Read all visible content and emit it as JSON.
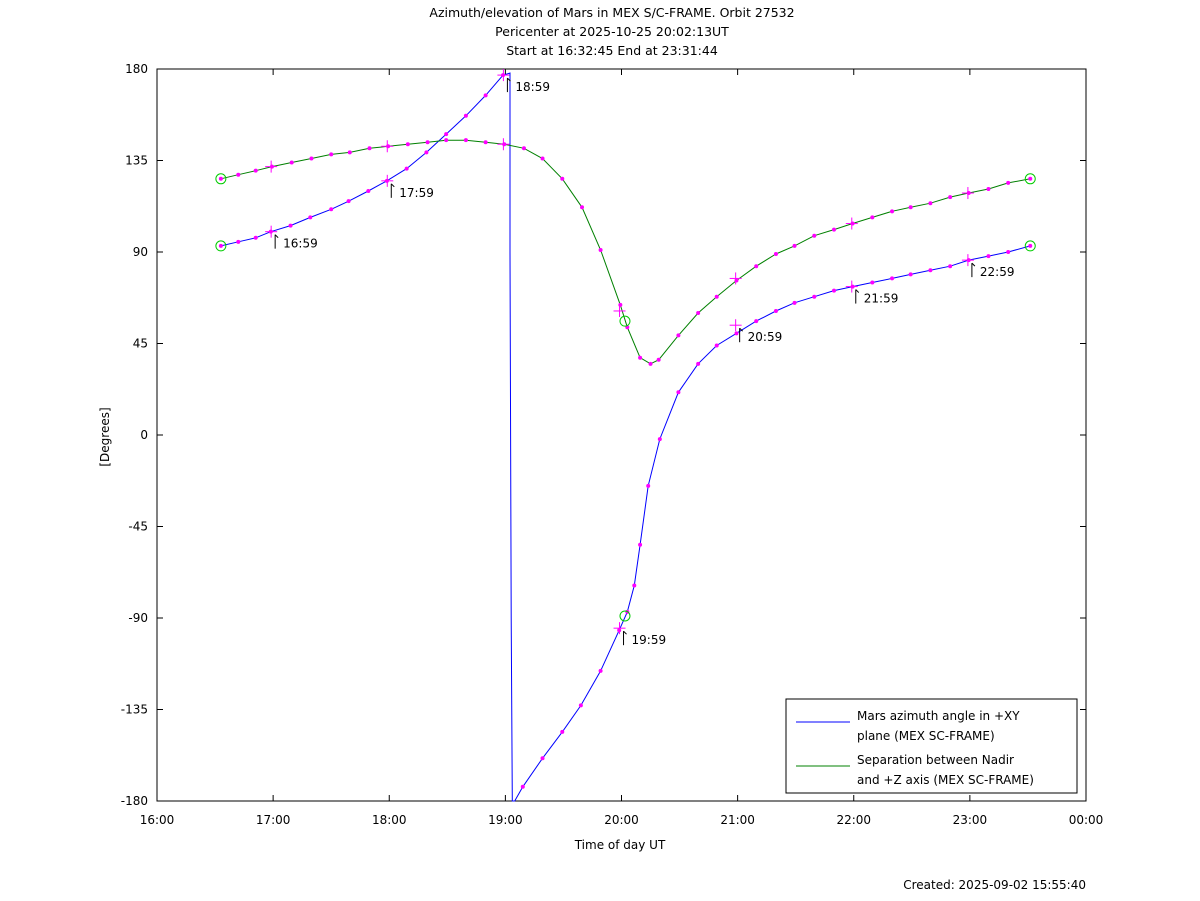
{
  "chart_data": {
    "type": "line",
    "title": "Azimuth/elevation of Mars in MEX S/C-FRAME.  Orbit 27532",
    "subtitle_1": "Pericenter at 2025-10-25 20:02:13UT",
    "subtitle_2": "Start at 16:32:45 End at 23:31:44",
    "xlabel": "Time of day UT",
    "ylabel": "[Degrees]",
    "footer": "Created: 2025-09-02 15:55:40",
    "xlim_hours": [
      16.0,
      24.0
    ],
    "ylim": [
      -180,
      180
    ],
    "xticks": [
      {
        "h": 16,
        "label": "16:00"
      },
      {
        "h": 17,
        "label": "17:00"
      },
      {
        "h": 18,
        "label": "18:00"
      },
      {
        "h": 19,
        "label": "19:00"
      },
      {
        "h": 20,
        "label": "20:00"
      },
      {
        "h": 21,
        "label": "21:00"
      },
      {
        "h": 22,
        "label": "22:00"
      },
      {
        "h": 23,
        "label": "23:00"
      },
      {
        "h": 24,
        "label": "00:00"
      }
    ],
    "yticks": [
      {
        "v": 180,
        "label": "180"
      },
      {
        "v": 135,
        "label": "135"
      },
      {
        "v": 90,
        "label": "90"
      },
      {
        "v": 45,
        "label": "45"
      },
      {
        "v": 0,
        "label": "0"
      },
      {
        "v": -45,
        "label": "-45"
      },
      {
        "v": -90,
        "label": "-90"
      },
      {
        "v": -135,
        "label": "-135"
      },
      {
        "v": -180,
        "label": "-180"
      }
    ],
    "grid": false,
    "legend_position": "bottom-right",
    "series": [
      {
        "name": "Mars azimuth angle in +XY plane (MEX SC-FRAME)",
        "legend_lines": [
          "Mars azimuth angle in +XY",
          "plane (MEX SC-FRAME)"
        ],
        "color": "#0000ff",
        "points": [
          [
            16.55,
            93
          ],
          [
            16.7,
            95
          ],
          [
            16.85,
            97
          ],
          [
            16.98,
            100
          ],
          [
            17.15,
            103
          ],
          [
            17.32,
            107
          ],
          [
            17.5,
            111
          ],
          [
            17.65,
            115
          ],
          [
            17.82,
            120
          ],
          [
            17.98,
            125
          ],
          [
            18.15,
            131
          ],
          [
            18.32,
            139
          ],
          [
            18.49,
            148
          ],
          [
            18.66,
            157
          ],
          [
            18.83,
            167
          ],
          [
            18.98,
            177
          ],
          [
            19.04,
            178
          ],
          [
            19.04,
            90
          ],
          [
            19.05,
            -90
          ],
          [
            19.06,
            -180
          ],
          [
            19.08,
            -180
          ],
          [
            19.15,
            -173
          ],
          [
            19.32,
            -159
          ],
          [
            19.49,
            -146
          ],
          [
            19.65,
            -133
          ],
          [
            19.82,
            -116
          ],
          [
            19.98,
            -96
          ],
          [
            20.05,
            -87
          ],
          [
            20.11,
            -74
          ],
          [
            20.16,
            -54
          ],
          [
            20.23,
            -25
          ],
          [
            20.33,
            -2
          ],
          [
            20.49,
            21
          ],
          [
            20.66,
            35
          ],
          [
            20.82,
            44
          ],
          [
            20.99,
            50
          ],
          [
            21.16,
            56
          ],
          [
            21.33,
            61
          ],
          [
            21.49,
            65
          ],
          [
            21.66,
            68
          ],
          [
            21.83,
            71
          ],
          [
            21.99,
            73
          ],
          [
            22.16,
            75
          ],
          [
            22.33,
            77
          ],
          [
            22.49,
            79
          ],
          [
            22.66,
            81
          ],
          [
            22.83,
            83
          ],
          [
            22.99,
            86
          ],
          [
            23.16,
            88
          ],
          [
            23.33,
            90
          ],
          [
            23.52,
            93
          ]
        ]
      },
      {
        "name": "Separation between Nadir and +Z axis (MEX SC-FRAME)",
        "legend_lines": [
          "Separation between Nadir",
          "and +Z axis (MEX SC-FRAME)"
        ],
        "color": "#008000",
        "points": [
          [
            16.55,
            126
          ],
          [
            16.7,
            128
          ],
          [
            16.85,
            130
          ],
          [
            16.99,
            132
          ],
          [
            17.16,
            134
          ],
          [
            17.33,
            136
          ],
          [
            17.5,
            138
          ],
          [
            17.66,
            139
          ],
          [
            17.83,
            141
          ],
          [
            17.99,
            142
          ],
          [
            18.16,
            143
          ],
          [
            18.33,
            144
          ],
          [
            18.49,
            145
          ],
          [
            18.66,
            145
          ],
          [
            18.83,
            144
          ],
          [
            18.99,
            143
          ],
          [
            19.16,
            141
          ],
          [
            19.32,
            136
          ],
          [
            19.49,
            126
          ],
          [
            19.66,
            112
          ],
          [
            19.82,
            91
          ],
          [
            19.99,
            64
          ],
          [
            20.05,
            53
          ],
          [
            20.16,
            38
          ],
          [
            20.25,
            35
          ],
          [
            20.32,
            37
          ],
          [
            20.49,
            49
          ],
          [
            20.66,
            60
          ],
          [
            20.82,
            68
          ],
          [
            20.99,
            76
          ],
          [
            21.16,
            83
          ],
          [
            21.33,
            89
          ],
          [
            21.49,
            93
          ],
          [
            21.66,
            98
          ],
          [
            21.83,
            101
          ],
          [
            21.99,
            104
          ],
          [
            22.16,
            107
          ],
          [
            22.33,
            110
          ],
          [
            22.49,
            112
          ],
          [
            22.66,
            114
          ],
          [
            22.83,
            117
          ],
          [
            22.99,
            119
          ],
          [
            23.16,
            121
          ],
          [
            23.33,
            124
          ],
          [
            23.52,
            126
          ]
        ]
      }
    ],
    "dot_color": "#ff00ff",
    "circle_color": "#00cc00",
    "start_end_circles": [
      [
        16.55,
        93
      ],
      [
        16.55,
        126
      ],
      [
        20.03,
        -89
      ],
      [
        20.03,
        56
      ],
      [
        23.52,
        93
      ],
      [
        23.52,
        126
      ]
    ],
    "hour_markers": [
      {
        "h": 16.983,
        "v": 100,
        "label": "16:59"
      },
      {
        "h": 16.983,
        "v": 132,
        "label": ""
      },
      {
        "h": 17.983,
        "v": 125,
        "label": "17:59"
      },
      {
        "h": 17.983,
        "v": 142,
        "label": ""
      },
      {
        "h": 18.983,
        "v": 177,
        "label": "18:59"
      },
      {
        "h": 18.983,
        "v": 143,
        "label": ""
      },
      {
        "h": 19.983,
        "v": -95,
        "label": "19:59"
      },
      {
        "h": 19.983,
        "v": 61,
        "label": ""
      },
      {
        "h": 20.983,
        "v": 54,
        "label": "20:59"
      },
      {
        "h": 20.983,
        "v": 77,
        "label": ""
      },
      {
        "h": 21.983,
        "v": 73,
        "label": "21:59"
      },
      {
        "h": 21.983,
        "v": 104,
        "label": ""
      },
      {
        "h": 22.983,
        "v": 86,
        "label": "22:59"
      },
      {
        "h": 22.983,
        "v": 119,
        "label": ""
      }
    ]
  }
}
